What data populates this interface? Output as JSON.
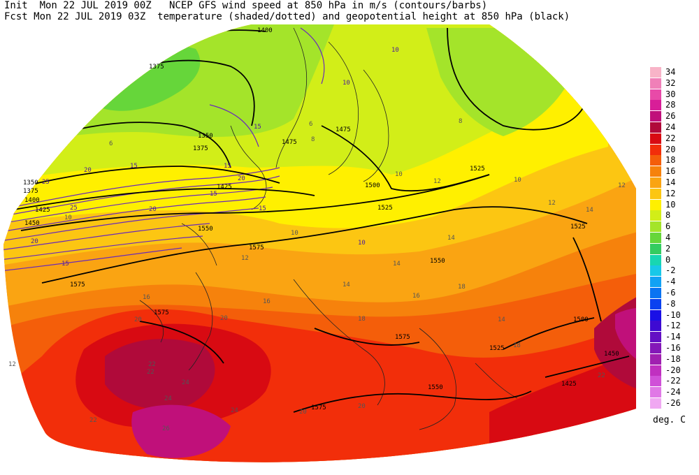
{
  "header": {
    "line1": "Init  Mon 22 JUL 2019 00Z   NCEP GFS wind speed at 850 hPa in m/s (contours/barbs)",
    "line2": "Fcst Mon 22 JUL 2019 03Z  temperature (shaded/dotted) and geopotential height at 850 hPa (black)"
  },
  "colorbar": {
    "units": "deg. C",
    "entries": [
      {
        "label": "34",
        "color": "#f8b4c8"
      },
      {
        "label": "32",
        "color": "#f080b8"
      },
      {
        "label": "30",
        "color": "#e84aa8"
      },
      {
        "label": "28",
        "color": "#d81e98"
      },
      {
        "label": "26",
        "color": "#c0107a"
      },
      {
        "label": "24",
        "color": "#b00a3a"
      },
      {
        "label": "22",
        "color": "#d80a12"
      },
      {
        "label": "20",
        "color": "#f22e0a"
      },
      {
        "label": "18",
        "color": "#f45e0a"
      },
      {
        "label": "16",
        "color": "#f6820c"
      },
      {
        "label": "14",
        "color": "#faa412"
      },
      {
        "label": "12",
        "color": "#fcc612"
      },
      {
        "label": "10",
        "color": "#fff000"
      },
      {
        "label": "8",
        "color": "#d2ee18"
      },
      {
        "label": "6",
        "color": "#a4e42a"
      },
      {
        "label": "4",
        "color": "#66d63a"
      },
      {
        "label": "2",
        "color": "#34cc60"
      },
      {
        "label": "0",
        "color": "#18d6b2"
      },
      {
        "label": "-2",
        "color": "#18c8e8"
      },
      {
        "label": "-4",
        "color": "#12a2f4"
      },
      {
        "label": "-6",
        "color": "#0a74f2"
      },
      {
        "label": "-8",
        "color": "#0a42f0"
      },
      {
        "label": "-10",
        "color": "#1a10e6"
      },
      {
        "label": "-12",
        "color": "#3e0ad2"
      },
      {
        "label": "-14",
        "color": "#6410c4"
      },
      {
        "label": "-16",
        "color": "#8418b8"
      },
      {
        "label": "-18",
        "color": "#a020b0"
      },
      {
        "label": "-20",
        "color": "#c030c0"
      },
      {
        "label": "-22",
        "color": "#d050d8"
      },
      {
        "label": "-24",
        "color": "#e078e6"
      },
      {
        "label": "-26",
        "color": "#f0a8f2"
      }
    ]
  },
  "map": {
    "height_labels": [
      {
        "text": "1400"
      },
      {
        "text": "1375"
      },
      {
        "text": "1350"
      },
      {
        "text": "1375"
      },
      {
        "text": "1350"
      },
      {
        "text": "1375"
      },
      {
        "text": "1400"
      },
      {
        "text": "1425"
      },
      {
        "text": "1450"
      },
      {
        "text": "1425"
      },
      {
        "text": "1475"
      },
      {
        "text": "1475"
      },
      {
        "text": "1500"
      },
      {
        "text": "1525"
      },
      {
        "text": "1525"
      },
      {
        "text": "1525"
      },
      {
        "text": "1550"
      },
      {
        "text": "1550"
      },
      {
        "text": "1575"
      },
      {
        "text": "1575"
      },
      {
        "text": "1575"
      },
      {
        "text": "1575"
      },
      {
        "text": "1575"
      },
      {
        "text": "1550"
      },
      {
        "text": "1525"
      },
      {
        "text": "1500"
      },
      {
        "text": "1450"
      },
      {
        "text": "1425"
      }
    ],
    "wind_labels": [
      {
        "text": "15"
      },
      {
        "text": "15"
      },
      {
        "text": "20"
      },
      {
        "text": "20"
      },
      {
        "text": "25"
      },
      {
        "text": "25"
      },
      {
        "text": "20"
      },
      {
        "text": "15"
      },
      {
        "text": "15"
      },
      {
        "text": "20"
      },
      {
        "text": "15"
      },
      {
        "text": "15"
      },
      {
        "text": "10"
      },
      {
        "text": "10"
      },
      {
        "text": "10"
      }
    ],
    "temp_labels": [
      {
        "text": "6"
      },
      {
        "text": "6"
      },
      {
        "text": "8"
      },
      {
        "text": "10"
      },
      {
        "text": "10"
      },
      {
        "text": "8"
      },
      {
        "text": "10"
      },
      {
        "text": "12"
      },
      {
        "text": "12"
      },
      {
        "text": "14"
      },
      {
        "text": "16"
      },
      {
        "text": "14"
      },
      {
        "text": "12"
      },
      {
        "text": "14"
      },
      {
        "text": "18"
      },
      {
        "text": "16"
      },
      {
        "text": "14"
      },
      {
        "text": "16"
      },
      {
        "text": "18"
      },
      {
        "text": "20"
      },
      {
        "text": "20"
      },
      {
        "text": "22"
      },
      {
        "text": "24"
      },
      {
        "text": "24"
      },
      {
        "text": "26"
      },
      {
        "text": "24"
      },
      {
        "text": "22"
      },
      {
        "text": "22"
      },
      {
        "text": "20"
      },
      {
        "text": "22"
      },
      {
        "text": "20"
      },
      {
        "text": "18"
      },
      {
        "text": "12"
      },
      {
        "text": "10"
      },
      {
        "text": "14"
      },
      {
        "text": "12"
      }
    ]
  }
}
